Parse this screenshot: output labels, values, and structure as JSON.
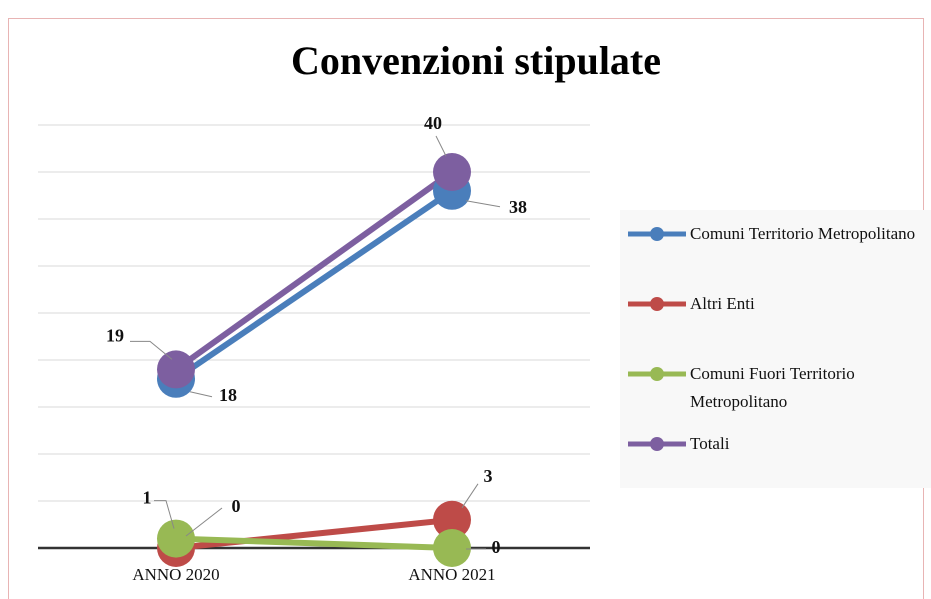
{
  "chart_data": {
    "type": "line",
    "title": "Convenzioni stipulate",
    "categories": [
      "ANNO 2020",
      "ANNO 2021"
    ],
    "series": [
      {
        "name": "Comuni Territorio Metropolitano",
        "color": "#4a7ebb",
        "values": [
          18,
          38
        ]
      },
      {
        "name": "Altri Enti",
        "color": "#be4b48",
        "values": [
          0,
          3
        ]
      },
      {
        "name": "Comuni Fuori Territorio Metropolitano",
        "color": "#98b954",
        "values": [
          1,
          0
        ]
      },
      {
        "name": "Totali",
        "color": "#7d5fa0",
        "values": [
          19,
          40
        ]
      }
    ],
    "ylim": [
      0,
      45
    ],
    "yticks": [
      0,
      5,
      10,
      15,
      20,
      25,
      30,
      35,
      40,
      45
    ],
    "grid": true,
    "legend": "right"
  }
}
